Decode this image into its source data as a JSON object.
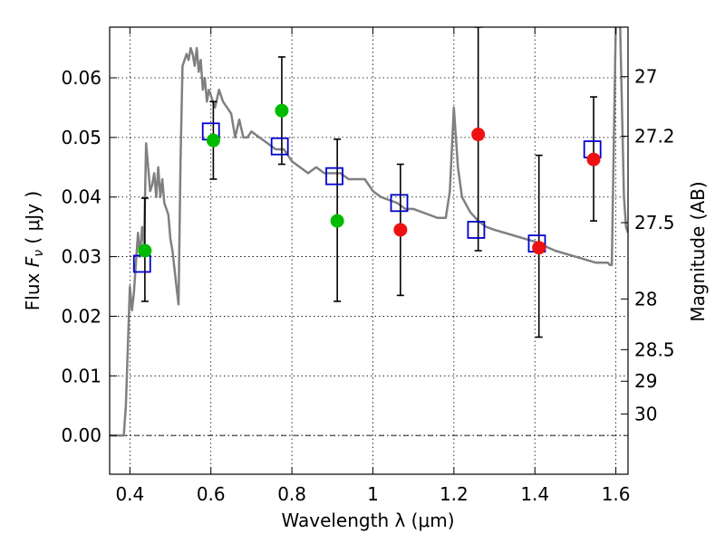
{
  "chart_data": {
    "type": "scatter",
    "xlabel": "Wavelength  λ (μm)",
    "ylabel": "Flux  F_ν  ( μJy )",
    "ylabel_parts": {
      "prefix": "Flux  ",
      "symbol": "F",
      "sub": "ν",
      "suffix": "  ( μJy )"
    },
    "right_ylabel": "Magnitude (AB)",
    "xlim": [
      0.35,
      1.63
    ],
    "ylim": [
      -0.0065,
      0.0685
    ],
    "grid": true,
    "x_ticks": [
      0.4,
      0.6,
      0.8,
      1.0,
      1.2,
      1.4,
      1.6
    ],
    "x_tick_labels": [
      "0.4",
      "0.6",
      "0.8",
      "1",
      "1.2",
      "1.4",
      "1.6"
    ],
    "y_ticks": [
      0.0,
      0.01,
      0.02,
      0.03,
      0.04,
      0.05,
      0.06
    ],
    "y_tick_labels": [
      "0.00",
      "0.01",
      "0.02",
      "0.03",
      "0.04",
      "0.05",
      "0.06"
    ],
    "mag_ticks": [
      {
        "flux": 0.0602,
        "label": "27"
      },
      {
        "flux": 0.0502,
        "label": "27.2"
      },
      {
        "flux": 0.0357,
        "label": "27.5"
      },
      {
        "flux": 0.0229,
        "label": "28"
      },
      {
        "flux": 0.0144,
        "label": "28.5"
      },
      {
        "flux": 0.0091,
        "label": "29"
      },
      {
        "flux": 0.0036,
        "label": "30"
      }
    ],
    "series": [
      {
        "kind": "model-spectrum",
        "color": "#808080",
        "x": [
          0.35,
          0.38,
          0.385,
          0.39,
          0.395,
          0.4,
          0.405,
          0.41,
          0.415,
          0.42,
          0.425,
          0.43,
          0.435,
          0.44,
          0.445,
          0.45,
          0.455,
          0.46,
          0.465,
          0.47,
          0.475,
          0.48,
          0.485,
          0.49,
          0.495,
          0.5,
          0.505,
          0.51,
          0.515,
          0.52,
          0.525,
          0.53,
          0.535,
          0.54,
          0.545,
          0.55,
          0.555,
          0.56,
          0.565,
          0.57,
          0.575,
          0.58,
          0.585,
          0.59,
          0.595,
          0.6,
          0.61,
          0.62,
          0.63,
          0.64,
          0.65,
          0.66,
          0.67,
          0.68,
          0.69,
          0.7,
          0.72,
          0.74,
          0.76,
          0.78,
          0.8,
          0.82,
          0.84,
          0.86,
          0.88,
          0.9,
          0.92,
          0.94,
          0.96,
          0.98,
          1.0,
          1.02,
          1.04,
          1.06,
          1.08,
          1.1,
          1.12,
          1.14,
          1.16,
          1.18,
          1.19,
          1.2,
          1.21,
          1.22,
          1.24,
          1.26,
          1.28,
          1.3,
          1.35,
          1.4,
          1.45,
          1.5,
          1.55,
          1.58,
          1.585,
          1.59,
          1.6,
          1.61,
          1.62,
          1.625,
          1.63
        ],
        "y": [
          0.0,
          0.0,
          0.0,
          0.005,
          0.015,
          0.025,
          0.021,
          0.024,
          0.029,
          0.034,
          0.03,
          0.035,
          0.032,
          0.049,
          0.045,
          0.041,
          0.042,
          0.044,
          0.04,
          0.045,
          0.04,
          0.043,
          0.039,
          0.038,
          0.037,
          0.033,
          0.031,
          0.028,
          0.025,
          0.022,
          0.046,
          0.062,
          0.063,
          0.064,
          0.063,
          0.065,
          0.064,
          0.062,
          0.065,
          0.061,
          0.063,
          0.058,
          0.06,
          0.056,
          0.058,
          0.057,
          0.055,
          0.058,
          0.056,
          0.055,
          0.054,
          0.05,
          0.053,
          0.05,
          0.05,
          0.051,
          0.05,
          0.049,
          0.048,
          0.048,
          0.046,
          0.045,
          0.044,
          0.045,
          0.044,
          0.044,
          0.044,
          0.043,
          0.043,
          0.043,
          0.041,
          0.04,
          0.0395,
          0.039,
          0.038,
          0.038,
          0.0375,
          0.037,
          0.0365,
          0.0365,
          0.041,
          0.055,
          0.045,
          0.04,
          0.0375,
          0.036,
          0.035,
          0.0345,
          0.0335,
          0.0325,
          0.031,
          0.03,
          0.029,
          0.029,
          0.0286,
          0.0286,
          0.07,
          0.07,
          0.04,
          0.035,
          0.034
        ]
      },
      {
        "kind": "observed-green",
        "color": "#00bb00",
        "points": [
          {
            "x": 0.437,
            "y": 0.031
          },
          {
            "x": 0.606,
            "y": 0.0495
          },
          {
            "x": 0.775,
            "y": 0.0545
          },
          {
            "x": 0.912,
            "y": 0.036
          }
        ]
      },
      {
        "kind": "observed-red",
        "color": "#ee1111",
        "points": [
          {
            "x": 1.068,
            "y": 0.0345
          },
          {
            "x": 1.26,
            "y": 0.0505
          },
          {
            "x": 1.41,
            "y": 0.0315
          },
          {
            "x": 1.545,
            "y": 0.0463
          }
        ]
      },
      {
        "kind": "model-photometry",
        "color": "#0000cc",
        "points": [
          {
            "x": 0.43,
            "y": 0.0288
          },
          {
            "x": 0.6,
            "y": 0.051
          },
          {
            "x": 0.77,
            "y": 0.0485
          },
          {
            "x": 0.905,
            "y": 0.0435
          },
          {
            "x": 1.065,
            "y": 0.039
          },
          {
            "x": 1.255,
            "y": 0.0345
          },
          {
            "x": 1.405,
            "y": 0.0322
          },
          {
            "x": 1.542,
            "y": 0.048
          }
        ]
      },
      {
        "kind": "error-bars",
        "color": "#000000",
        "bars": [
          {
            "x": 0.437,
            "lo": 0.0225,
            "hi": 0.0398
          },
          {
            "x": 0.606,
            "lo": 0.043,
            "hi": 0.056
          },
          {
            "x": 0.775,
            "lo": 0.0455,
            "hi": 0.0635
          },
          {
            "x": 0.912,
            "lo": 0.0225,
            "hi": 0.0497
          },
          {
            "x": 1.068,
            "lo": 0.0235,
            "hi": 0.0455
          },
          {
            "x": 1.26,
            "lo": 0.031,
            "hi": 0.0685
          },
          {
            "x": 1.41,
            "lo": 0.0165,
            "hi": 0.047
          },
          {
            "x": 1.545,
            "lo": 0.036,
            "hi": 0.0568
          }
        ]
      }
    ]
  }
}
